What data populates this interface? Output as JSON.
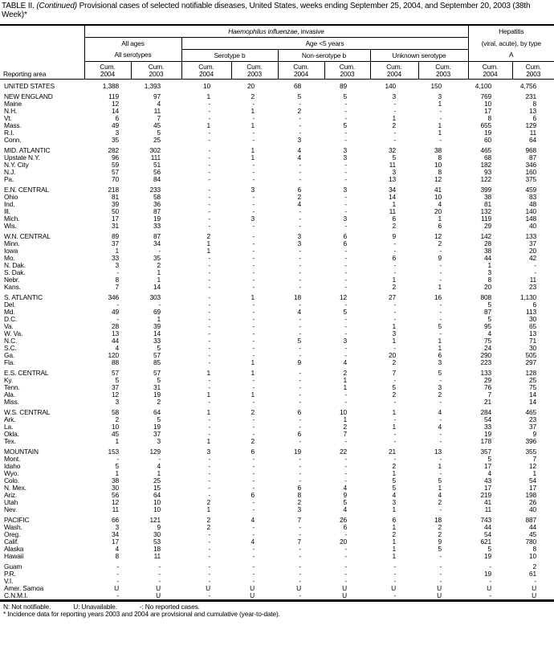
{
  "title": {
    "prefix": "TABLE II. ",
    "italic": "(Continued)",
    "rest": " Provisional cases of selected notifiable diseases, United States, weeks ending September 25, 2004, and September 20, 2003 (38th Week)*"
  },
  "header": {
    "reporting_area": "Reporting area",
    "hi_italic": "Haemophilus influenzae",
    "hi_rest": ", invasive",
    "hepatitis": "Hepatitis",
    "hepatitis_sub": "(viral, acute), by type",
    "all_ages": "All ages",
    "age_under5": "Age <5 years",
    "all_serotypes": "All serotypes",
    "serotype_b": "Serotype b",
    "non_serotype_b": "Non-serotype b",
    "unknown_serotype": "Unknown serotype",
    "hep_a": "A",
    "cum_cols": [
      "Cum. 2004",
      "Cum. 2003",
      "Cum. 2004",
      "Cum. 2003",
      "Cum. 2004",
      "Cum. 2003",
      "Cum. 2004",
      "Cum. 2003",
      "Cum. 2004",
      "Cum. 2003"
    ]
  },
  "groups": [
    [
      [
        "UNITED STATES",
        "1,388",
        "1,393",
        "10",
        "20",
        "68",
        "89",
        "140",
        "150",
        "4,100",
        "4,756"
      ]
    ],
    [
      [
        "NEW ENGLAND",
        "119",
        "97",
        "1",
        "2",
        "5",
        "5",
        "3",
        "3",
        "769",
        "231"
      ],
      [
        "Maine",
        "12",
        "4",
        "-",
        "-",
        "-",
        "-",
        "-",
        "1",
        "10",
        "8"
      ],
      [
        "N.H.",
        "14",
        "11",
        "-",
        "1",
        "2",
        "-",
        "-",
        "-",
        "17",
        "13"
      ],
      [
        "Vt.",
        "6",
        "7",
        "-",
        "-",
        "-",
        "-",
        "1",
        "-",
        "8",
        "6"
      ],
      [
        "Mass.",
        "49",
        "45",
        "1",
        "1",
        "-",
        "5",
        "2",
        "1",
        "655",
        "129"
      ],
      [
        "R.I.",
        "3",
        "5",
        "-",
        "-",
        "-",
        "-",
        "-",
        "1",
        "19",
        "11"
      ],
      [
        "Conn.",
        "35",
        "25",
        "-",
        "-",
        "3",
        "-",
        "-",
        "-",
        "60",
        "64"
      ]
    ],
    [
      [
        "MID. ATLANTIC",
        "282",
        "302",
        "-",
        "1",
        "4",
        "3",
        "32",
        "38",
        "465",
        "968"
      ],
      [
        "Upstate N.Y.",
        "96",
        "111",
        "-",
        "1",
        "4",
        "3",
        "5",
        "8",
        "68",
        "87"
      ],
      [
        "N.Y. City",
        "59",
        "51",
        "-",
        "-",
        "-",
        "-",
        "11",
        "10",
        "182",
        "346"
      ],
      [
        "N.J.",
        "57",
        "56",
        "-",
        "-",
        "-",
        "-",
        "3",
        "8",
        "93",
        "160"
      ],
      [
        "Pa.",
        "70",
        "84",
        "-",
        "-",
        "-",
        "-",
        "13",
        "12",
        "122",
        "375"
      ]
    ],
    [
      [
        "E.N. CENTRAL",
        "218",
        "233",
        "-",
        "3",
        "6",
        "3",
        "34",
        "41",
        "399",
        "459"
      ],
      [
        "Ohio",
        "81",
        "58",
        "-",
        "-",
        "2",
        "-",
        "14",
        "10",
        "38",
        "83"
      ],
      [
        "Ind.",
        "39",
        "36",
        "-",
        "-",
        "4",
        "-",
        "1",
        "4",
        "81",
        "48"
      ],
      [
        "Ill.",
        "50",
        "87",
        "-",
        "-",
        "-",
        "-",
        "11",
        "20",
        "132",
        "140"
      ],
      [
        "Mich.",
        "17",
        "19",
        "-",
        "3",
        "-",
        "3",
        "6",
        "1",
        "119",
        "148"
      ],
      [
        "Wis.",
        "31",
        "33",
        "-",
        "-",
        "-",
        "-",
        "2",
        "6",
        "29",
        "40"
      ]
    ],
    [
      [
        "W.N. CENTRAL",
        "89",
        "87",
        "2",
        "-",
        "3",
        "6",
        "9",
        "12",
        "142",
        "133"
      ],
      [
        "Minn.",
        "37",
        "34",
        "1",
        "-",
        "3",
        "6",
        "-",
        "2",
        "28",
        "37"
      ],
      [
        "Iowa",
        "1",
        "-",
        "1",
        "-",
        "-",
        "-",
        "-",
        "-",
        "38",
        "20"
      ],
      [
        "Mo.",
        "33",
        "35",
        "-",
        "-",
        "-",
        "-",
        "6",
        "9",
        "44",
        "42"
      ],
      [
        "N. Dak.",
        "3",
        "2",
        "-",
        "-",
        "-",
        "-",
        "-",
        "-",
        "1",
        "-"
      ],
      [
        "S. Dak.",
        "-",
        "1",
        "-",
        "-",
        "-",
        "-",
        "-",
        "-",
        "3",
        "-"
      ],
      [
        "Nebr.",
        "8",
        "1",
        "-",
        "-",
        "-",
        "-",
        "1",
        "-",
        "8",
        "11"
      ],
      [
        "Kans.",
        "7",
        "14",
        "-",
        "-",
        "-",
        "-",
        "2",
        "1",
        "20",
        "23"
      ]
    ],
    [
      [
        "S. ATLANTIC",
        "346",
        "303",
        "-",
        "1",
        "18",
        "12",
        "27",
        "16",
        "808",
        "1,130"
      ],
      [
        "Del.",
        "-",
        "-",
        "-",
        "-",
        "-",
        "-",
        "-",
        "-",
        "5",
        "6"
      ],
      [
        "Md.",
        "49",
        "69",
        "-",
        "-",
        "4",
        "5",
        "-",
        "-",
        "87",
        "113"
      ],
      [
        "D.C.",
        "-",
        "1",
        "-",
        "-",
        "-",
        "-",
        "-",
        "-",
        "5",
        "30"
      ],
      [
        "Va.",
        "28",
        "39",
        "-",
        "-",
        "-",
        "-",
        "1",
        "5",
        "95",
        "65"
      ],
      [
        "W. Va.",
        "13",
        "14",
        "-",
        "-",
        "-",
        "-",
        "3",
        "-",
        "4",
        "13"
      ],
      [
        "N.C.",
        "44",
        "33",
        "-",
        "-",
        "5",
        "3",
        "1",
        "1",
        "75",
        "71"
      ],
      [
        "S.C.",
        "4",
        "5",
        "-",
        "-",
        "-",
        "-",
        "-",
        "1",
        "24",
        "30"
      ],
      [
        "Ga.",
        "120",
        "57",
        "-",
        "-",
        "-",
        "-",
        "20",
        "6",
        "290",
        "505"
      ],
      [
        "Fla.",
        "88",
        "85",
        "-",
        "1",
        "9",
        "4",
        "2",
        "3",
        "223",
        "297"
      ]
    ],
    [
      [
        "E.S. CENTRAL",
        "57",
        "57",
        "1",
        "1",
        "-",
        "2",
        "7",
        "5",
        "133",
        "128"
      ],
      [
        "Ky.",
        "5",
        "5",
        "-",
        "-",
        "-",
        "1",
        "-",
        "-",
        "29",
        "25"
      ],
      [
        "Tenn.",
        "37",
        "31",
        "-",
        "-",
        "-",
        "1",
        "5",
        "3",
        "76",
        "75"
      ],
      [
        "Ala.",
        "12",
        "19",
        "1",
        "1",
        "-",
        "-",
        "2",
        "2",
        "7",
        "14"
      ],
      [
        "Miss.",
        "3",
        "2",
        "-",
        "-",
        "-",
        "-",
        "-",
        "-",
        "21",
        "14"
      ]
    ],
    [
      [
        "W.S. CENTRAL",
        "58",
        "64",
        "1",
        "2",
        "6",
        "10",
        "1",
        "4",
        "284",
        "465"
      ],
      [
        "Ark.",
        "2",
        "5",
        "-",
        "-",
        "-",
        "1",
        "-",
        "-",
        "54",
        "23"
      ],
      [
        "La.",
        "10",
        "19",
        "-",
        "-",
        "-",
        "2",
        "1",
        "4",
        "33",
        "37"
      ],
      [
        "Okla.",
        "45",
        "37",
        "-",
        "-",
        "6",
        "7",
        "-",
        "-",
        "19",
        "9"
      ],
      [
        "Tex.",
        "1",
        "3",
        "1",
        "2",
        "-",
        "-",
        "-",
        "-",
        "178",
        "396"
      ]
    ],
    [
      [
        "MOUNTAIN",
        "153",
        "129",
        "3",
        "6",
        "19",
        "22",
        "21",
        "13",
        "357",
        "355"
      ],
      [
        "Mont.",
        "-",
        "-",
        "-",
        "-",
        "-",
        "-",
        "-",
        "-",
        "5",
        "7"
      ],
      [
        "Idaho",
        "5",
        "4",
        "-",
        "-",
        "-",
        "-",
        "2",
        "1",
        "17",
        "12"
      ],
      [
        "Wyo.",
        "1",
        "1",
        "-",
        "-",
        "-",
        "-",
        "1",
        "-",
        "4",
        "1"
      ],
      [
        "Colo.",
        "38",
        "25",
        "-",
        "-",
        "-",
        "-",
        "5",
        "5",
        "43",
        "54"
      ],
      [
        "N. Mex.",
        "30",
        "15",
        "-",
        "-",
        "6",
        "4",
        "5",
        "1",
        "17",
        "17"
      ],
      [
        "Ariz.",
        "56",
        "64",
        "-",
        "6",
        "8",
        "9",
        "4",
        "4",
        "219",
        "198"
      ],
      [
        "Utah",
        "12",
        "10",
        "2",
        "-",
        "2",
        "5",
        "3",
        "2",
        "41",
        "26"
      ],
      [
        "Nev.",
        "11",
        "10",
        "1",
        "-",
        "3",
        "4",
        "1",
        "-",
        "11",
        "40"
      ]
    ],
    [
      [
        "PACIFIC",
        "66",
        "121",
        "2",
        "4",
        "7",
        "26",
        "6",
        "18",
        "743",
        "887"
      ],
      [
        "Wash.",
        "3",
        "9",
        "2",
        "-",
        "-",
        "6",
        "1",
        "2",
        "44",
        "44"
      ],
      [
        "Oreg.",
        "34",
        "30",
        "-",
        "-",
        "-",
        "-",
        "2",
        "2",
        "54",
        "45"
      ],
      [
        "Calif.",
        "17",
        "53",
        "-",
        "4",
        "7",
        "20",
        "1",
        "9",
        "621",
        "780"
      ],
      [
        "Alaska",
        "4",
        "18",
        "-",
        "-",
        "-",
        "-",
        "1",
        "5",
        "5",
        "8"
      ],
      [
        "Hawaii",
        "8",
        "11",
        "-",
        "-",
        "-",
        "-",
        "1",
        "-",
        "19",
        "10"
      ]
    ],
    [
      [
        "Guam",
        "-",
        "-",
        "-",
        "-",
        "-",
        "-",
        "-",
        "-",
        "-",
        "2"
      ],
      [
        "P.R.",
        "-",
        "-",
        "-",
        "-",
        "-",
        "-",
        "-",
        "-",
        "19",
        "61"
      ],
      [
        "V.I.",
        "-",
        "-",
        "-",
        "-",
        "-",
        "-",
        "-",
        "-",
        "-",
        "-"
      ],
      [
        "Amer. Samoa",
        "U",
        "U",
        "U",
        "U",
        "U",
        "U",
        "U",
        "U",
        "U",
        "U"
      ],
      [
        "C.N.M.I.",
        "-",
        "U",
        "-",
        "U",
        "-",
        "U",
        "-",
        "U",
        "-",
        "U"
      ]
    ]
  ],
  "footer": {
    "n": "N: Not notifiable.",
    "u": "U: Unavailable.",
    "dash": "-: No reported cases.",
    "note": "* Incidence data for reporting years 2003 and 2004 are provisional and cumulative (year-to-date)."
  }
}
